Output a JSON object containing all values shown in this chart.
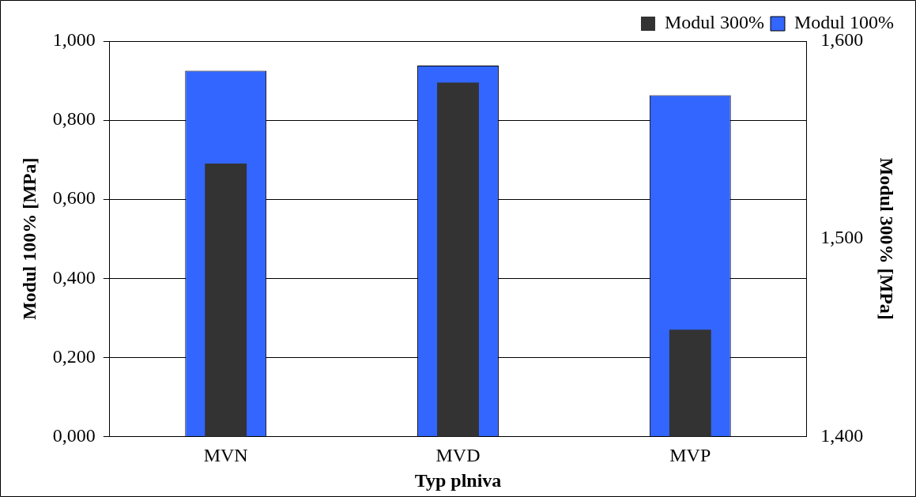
{
  "chart_data": {
    "type": "bar",
    "categories": [
      "MVN",
      "MVD",
      "MVP"
    ],
    "series": [
      {
        "name": "Modul 100%",
        "color": "#3366ff",
        "values": [
          0.925,
          0.938,
          0.863
        ]
      },
      {
        "name": "Modul 300%",
        "color": "#333333",
        "axis": "y2",
        "values": [
          1.538,
          1.579,
          1.454
        ]
      }
    ],
    "xlabel": "Typ plniva",
    "ylabel": "Modul 100% [MPa]",
    "y2label": "Modul 300% [MPa]",
    "ylim": [
      0,
      1
    ],
    "yticks": [
      {
        "value": 0,
        "label": "0,000"
      },
      {
        "value": 0.2,
        "label": "0,200"
      },
      {
        "value": 0.4,
        "label": "0,400"
      },
      {
        "value": 0.6,
        "label": "0,600"
      },
      {
        "value": 0.8,
        "label": "0,800"
      },
      {
        "value": 1,
        "label": "1,000"
      }
    ],
    "y2lim": [
      1.4,
      1.6
    ],
    "y2ticks": [
      {
        "value": 1.4,
        "label": "1,400"
      },
      {
        "value": 1.5,
        "label": "1,500"
      },
      {
        "value": 1.6,
        "label": "1,600"
      }
    ],
    "grid": "y",
    "legend": "top right"
  }
}
